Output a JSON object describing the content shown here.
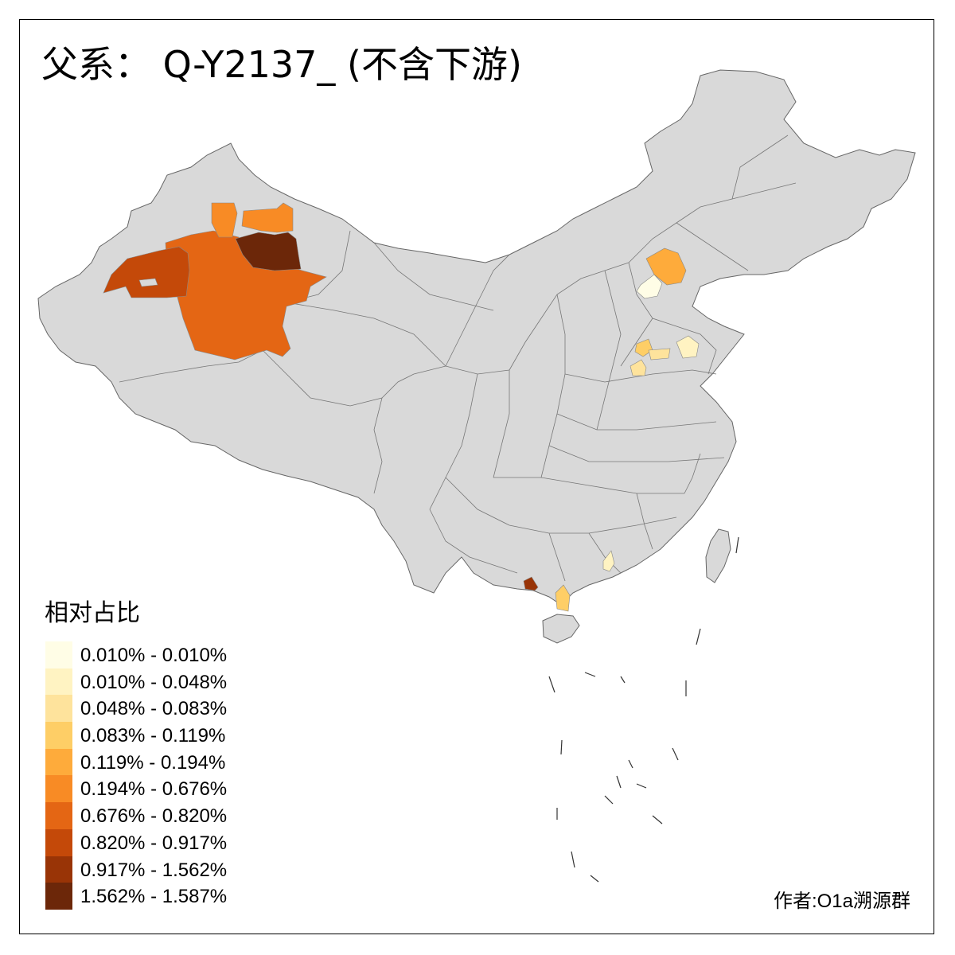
{
  "title": "父系： Q-Y2137_ (不含下游)",
  "legend": {
    "title": "相对占比",
    "items": [
      {
        "label": "0.010% - 0.010%",
        "color": "#fffde6"
      },
      {
        "label": "0.010% - 0.048%",
        "color": "#fff3c2"
      },
      {
        "label": "0.048% - 0.083%",
        "color": "#fee39c"
      },
      {
        "label": "0.083% - 0.119%",
        "color": "#fece66"
      },
      {
        "label": "0.119% - 0.194%",
        "color": "#feab3b"
      },
      {
        "label": "0.194% - 0.676%",
        "color": "#f88b25"
      },
      {
        "label": "0.676% - 0.820%",
        "color": "#e46614"
      },
      {
        "label": "0.820% - 0.917%",
        "color": "#c44909"
      },
      {
        "label": "0.917% - 1.562%",
        "color": "#993406"
      },
      {
        "label": "1.562% - 1.587%",
        "color": "#6c2709"
      }
    ]
  },
  "credit": "作者:O1a溯源群",
  "map": {
    "base_color": "#d9d9d9",
    "border_color": "#777777",
    "highlighted_regions": [
      {
        "name": "Xinjiang north-central",
        "class": "0.676% - 0.820%"
      },
      {
        "name": "Xinjiang west",
        "class": "0.820% - 0.917%"
      },
      {
        "name": "Xinjiang north (darkest)",
        "class": "1.562% - 1.587%"
      },
      {
        "name": "Xinjiang north small (left)",
        "class": "0.194% - 0.676%"
      },
      {
        "name": "Xinjiang north small (right)",
        "class": "0.194% - 0.676%"
      },
      {
        "name": "Hebei north",
        "class": "0.119% - 0.194%"
      },
      {
        "name": "Hebei west",
        "class": "0.010% - 0.010%"
      },
      {
        "name": "Shandong area",
        "class": "0.048% - 0.083%"
      },
      {
        "name": "Guangxi south",
        "class": "0.917% - 1.562%"
      },
      {
        "name": "Guangdong west",
        "class": "0.083% - 0.119%"
      },
      {
        "name": "Guangdong central",
        "class": "0.010% - 0.048%"
      }
    ]
  }
}
